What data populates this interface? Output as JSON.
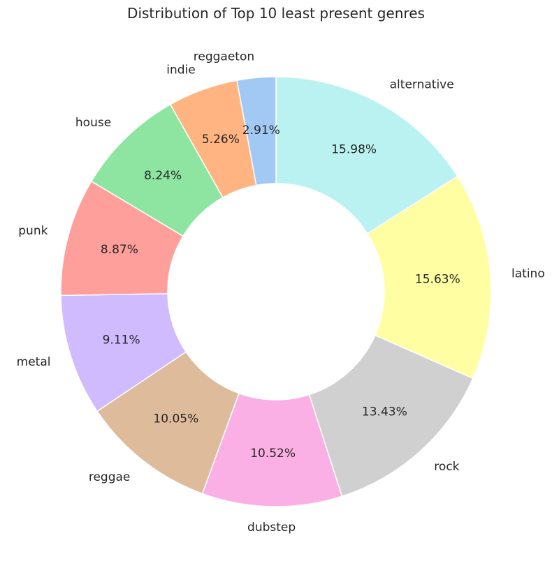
{
  "chart_data": {
    "type": "pie",
    "variant": "donut",
    "title": "Distribution of Top 10 least present genres",
    "categories": [
      "alternative",
      "latino",
      "rock",
      "dubstep",
      "reggae",
      "metal",
      "punk",
      "house",
      "indie",
      "reggaeton"
    ],
    "values": [
      15.98,
      15.63,
      13.43,
      10.52,
      10.05,
      9.11,
      8.87,
      8.24,
      5.26,
      2.91
    ],
    "labels": [
      "15.98%",
      "15.63%",
      "13.43%",
      "10.52%",
      "10.05%",
      "9.11%",
      "8.87%",
      "8.24%",
      "5.26%",
      "2.91%"
    ],
    "colors": [
      "#b9f2f0",
      "#fffea3",
      "#d0d0d0",
      "#fab0e4",
      "#debb9b",
      "#d0bbff",
      "#ff9f9b",
      "#8de5a1",
      "#ffb482",
      "#a1c9f4"
    ],
    "start_angle_deg": 90,
    "direction": "clockwise",
    "legend": "none"
  }
}
